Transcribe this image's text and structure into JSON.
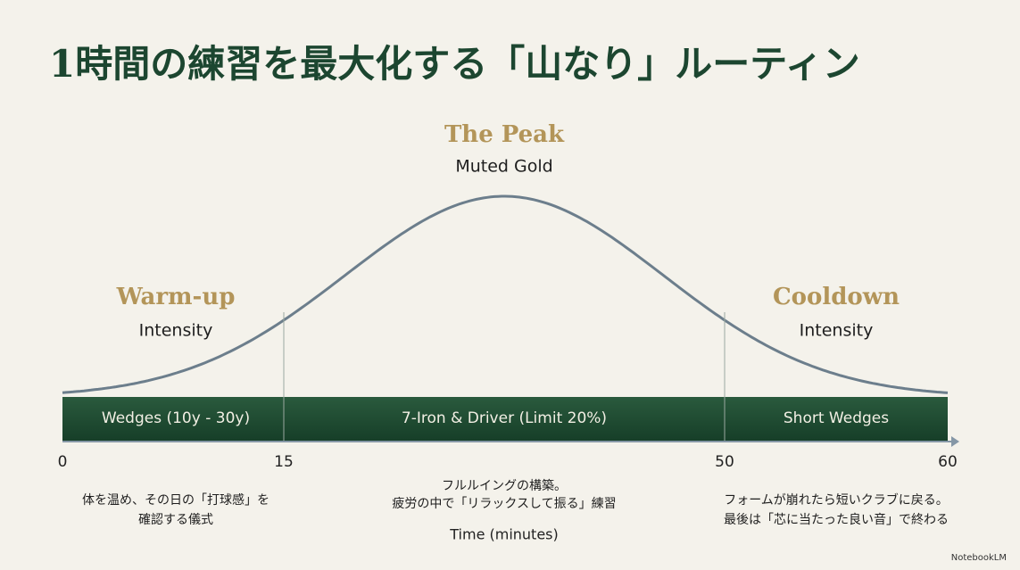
{
  "title": "1時間の練習を最大化する「山なり」ルーティン",
  "sections": [
    {
      "heading": "Warm-up",
      "subheading": "Intensity",
      "band_label": "Wedges (10y - 30y)",
      "description": [
        "体を温め、その日の「打球感」を",
        "確認する儀式"
      ]
    },
    {
      "heading": "The Peak",
      "subheading": "Muted Gold",
      "band_label": "7-Iron & Driver (Limit 20%)",
      "description": [
        "フルルイングの構築。",
        "疲労の中で「リラックスして振る」練習"
      ]
    },
    {
      "heading": "Cooldown",
      "subheading": "Intensity",
      "band_label": "Short Wedges",
      "description": [
        "フォームが崩れたら短いクラブに戻る。",
        "最後は「芯に当たった良い音」で終わる"
      ]
    }
  ],
  "axis": {
    "ticks": [
      0,
      15,
      50,
      60
    ],
    "label": "Time (minutes)"
  },
  "watermark": "NotebookLM"
}
